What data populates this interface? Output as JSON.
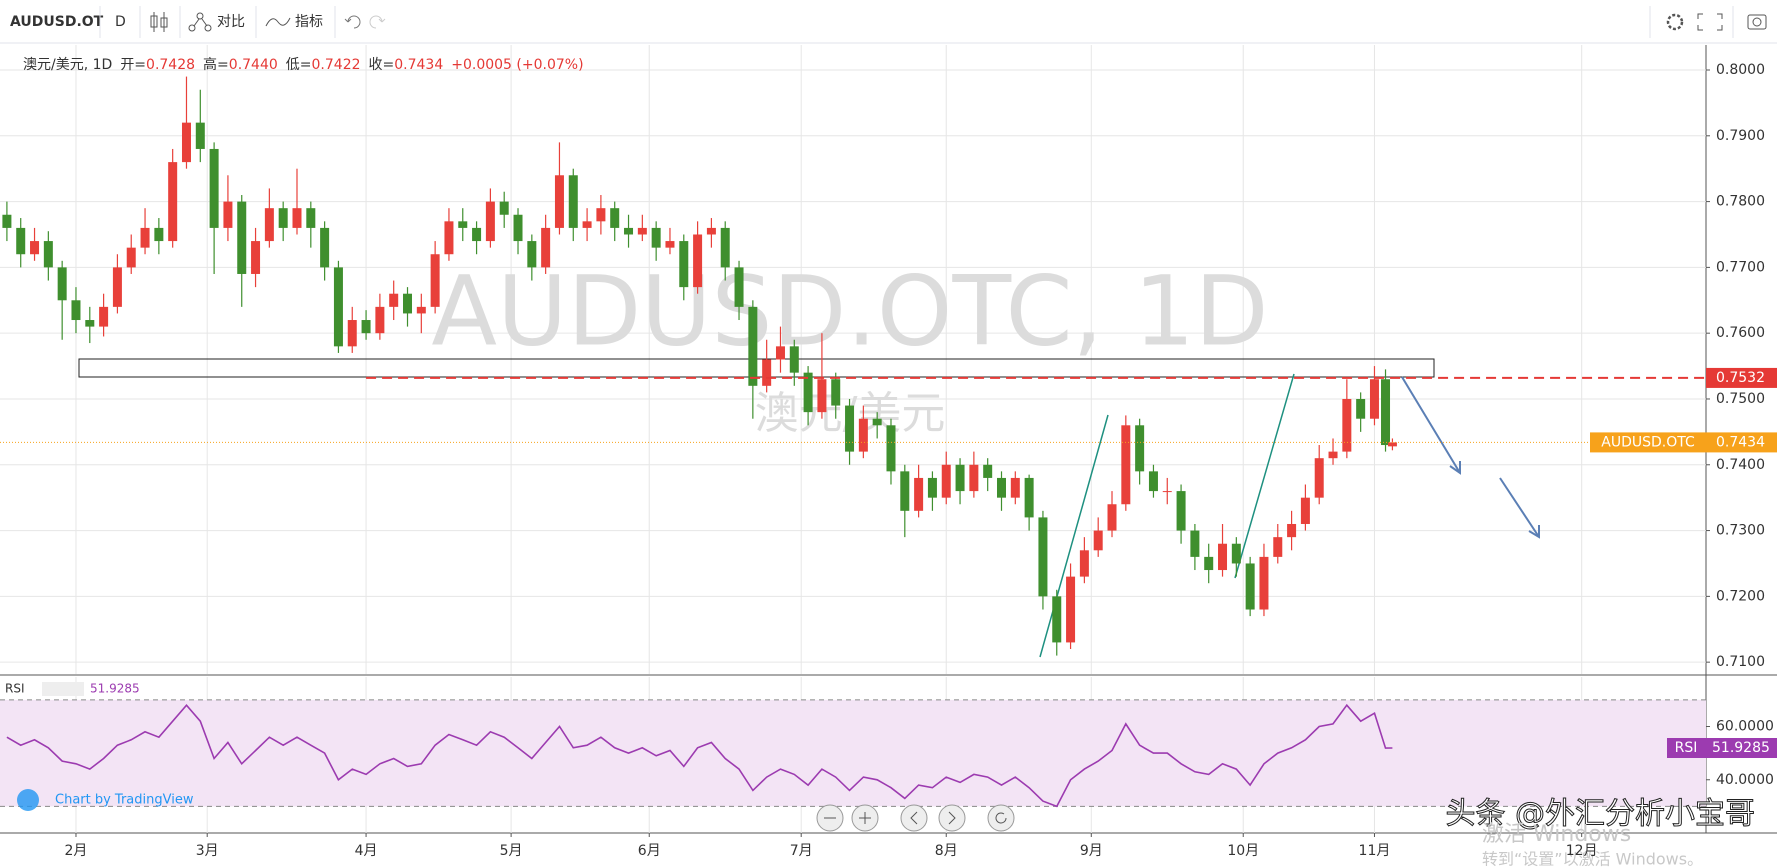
{
  "toolbar": {
    "symbol": "AUDUSD.OT",
    "interval": "D",
    "compare": "对比",
    "indicators": "指标"
  },
  "legend": {
    "name": "澳元/美元, 1D",
    "fields": [
      {
        "label": "开=",
        "value": "0.7428"
      },
      {
        "label": "高=",
        "value": "0.7440"
      },
      {
        "label": "低=",
        "value": "0.7422"
      },
      {
        "label": "收=",
        "value": "0.7434"
      }
    ],
    "change": "+0.0005 (+0.07%)"
  },
  "credit": "Chart by TradingView",
  "watermark": {
    "handle": "头条 @外汇分析小宝哥",
    "activate": "激活 Windows",
    "activate_hint": "转到“设置”以激活 Windows。"
  },
  "chart_data": [
    {
      "type": "candlestick",
      "title": "AUDUSD.OTC, 1D",
      "subtitle": "澳元/美元",
      "x": [
        1,
        3,
        5,
        7,
        9,
        11,
        13,
        15,
        17,
        19,
        21,
        23,
        25,
        27,
        29,
        31,
        33,
        35,
        37,
        39,
        41,
        43,
        45,
        47,
        49,
        51,
        53,
        55,
        57,
        59,
        61,
        63,
        65,
        67,
        69,
        71,
        73,
        75,
        77,
        79,
        81,
        83,
        85,
        87,
        89,
        91,
        93,
        95,
        97,
        99,
        101,
        103,
        105,
        107,
        109,
        111,
        113,
        115,
        117,
        119,
        121,
        123,
        125,
        127,
        129,
        131,
        133,
        135,
        137,
        139,
        141,
        143,
        145,
        147,
        149,
        151,
        153,
        155,
        157,
        159,
        161,
        163,
        165,
        167,
        169,
        171,
        173,
        175,
        177,
        179,
        181,
        183,
        185,
        187,
        189,
        191,
        193,
        195,
        197,
        199,
        200.6,
        201.6
      ],
      "series": [
        {
          "name": "澳元/美元, 1D",
          "up_color": "#e8403a",
          "down_color": "#3f8f2e",
          "ohlc": [
            [
              0.778,
              0.78,
              0.774,
              0.776
            ],
            [
              0.776,
              0.7775,
              0.77,
              0.772
            ],
            [
              0.772,
              0.776,
              0.771,
              0.774
            ],
            [
              0.774,
              0.7755,
              0.768,
              0.77
            ],
            [
              0.77,
              0.771,
              0.759,
              0.765
            ],
            [
              0.765,
              0.767,
              0.76,
              0.762
            ],
            [
              0.762,
              0.764,
              0.7585,
              0.761
            ],
            [
              0.761,
              0.766,
              0.7595,
              0.764
            ],
            [
              0.764,
              0.772,
              0.763,
              0.77
            ],
            [
              0.77,
              0.775,
              0.769,
              0.773
            ],
            [
              0.773,
              0.779,
              0.772,
              0.776
            ],
            [
              0.776,
              0.7775,
              0.772,
              0.774
            ],
            [
              0.774,
              0.788,
              0.773,
              0.786
            ],
            [
              0.786,
              0.799,
              0.785,
              0.792
            ],
            [
              0.792,
              0.797,
              0.786,
              0.788
            ],
            [
              0.788,
              0.789,
              0.769,
              0.776
            ],
            [
              0.776,
              0.784,
              0.774,
              0.78
            ],
            [
              0.78,
              0.781,
              0.764,
              0.769
            ],
            [
              0.769,
              0.776,
              0.767,
              0.774
            ],
            [
              0.774,
              0.782,
              0.773,
              0.779
            ],
            [
              0.779,
              0.78,
              0.774,
              0.776
            ],
            [
              0.776,
              0.785,
              0.775,
              0.779
            ],
            [
              0.779,
              0.78,
              0.773,
              0.776
            ],
            [
              0.776,
              0.777,
              0.768,
              0.77
            ],
            [
              0.77,
              0.771,
              0.757,
              0.758
            ],
            [
              0.758,
              0.764,
              0.757,
              0.762
            ],
            [
              0.762,
              0.7635,
              0.759,
              0.76
            ],
            [
              0.76,
              0.766,
              0.759,
              0.764
            ],
            [
              0.764,
              0.768,
              0.762,
              0.766
            ],
            [
              0.766,
              0.767,
              0.761,
              0.763
            ],
            [
              0.763,
              0.766,
              0.76,
              0.764
            ],
            [
              0.764,
              0.774,
              0.763,
              0.772
            ],
            [
              0.772,
              0.779,
              0.771,
              0.777
            ],
            [
              0.777,
              0.779,
              0.774,
              0.776
            ],
            [
              0.776,
              0.777,
              0.772,
              0.774
            ],
            [
              0.774,
              0.782,
              0.773,
              0.78
            ],
            [
              0.78,
              0.7815,
              0.776,
              0.778
            ],
            [
              0.778,
              0.779,
              0.772,
              0.774
            ],
            [
              0.774,
              0.775,
              0.768,
              0.77
            ],
            [
              0.77,
              0.778,
              0.769,
              0.776
            ],
            [
              0.776,
              0.789,
              0.775,
              0.784
            ],
            [
              0.784,
              0.785,
              0.774,
              0.776
            ],
            [
              0.776,
              0.779,
              0.774,
              0.777
            ],
            [
              0.777,
              0.781,
              0.775,
              0.779
            ],
            [
              0.779,
              0.78,
              0.774,
              0.776
            ],
            [
              0.776,
              0.778,
              0.773,
              0.775
            ],
            [
              0.775,
              0.778,
              0.774,
              0.776
            ],
            [
              0.776,
              0.777,
              0.771,
              0.773
            ],
            [
              0.773,
              0.776,
              0.772,
              0.774
            ],
            [
              0.774,
              0.775,
              0.765,
              0.767
            ],
            [
              0.767,
              0.777,
              0.766,
              0.775
            ],
            [
              0.775,
              0.7775,
              0.773,
              0.776
            ],
            [
              0.776,
              0.777,
              0.768,
              0.77
            ],
            [
              0.77,
              0.771,
              0.762,
              0.764
            ],
            [
              0.764,
              0.765,
              0.747,
              0.752
            ],
            [
              0.752,
              0.759,
              0.751,
              0.756
            ],
            [
              0.756,
              0.761,
              0.754,
              0.758
            ],
            [
              0.758,
              0.759,
              0.752,
              0.754
            ],
            [
              0.754,
              0.755,
              0.746,
              0.748
            ],
            [
              0.748,
              0.76,
              0.747,
              0.753
            ],
            [
              0.753,
              0.754,
              0.747,
              0.749
            ],
            [
              0.749,
              0.75,
              0.74,
              0.742
            ],
            [
              0.742,
              0.749,
              0.741,
              0.747
            ],
            [
              0.747,
              0.748,
              0.744,
              0.746
            ],
            [
              0.746,
              0.747,
              0.737,
              0.739
            ],
            [
              0.739,
              0.74,
              0.729,
              0.733
            ],
            [
              0.733,
              0.74,
              0.732,
              0.738
            ],
            [
              0.738,
              0.739,
              0.733,
              0.735
            ],
            [
              0.735,
              0.742,
              0.734,
              0.74
            ],
            [
              0.74,
              0.741,
              0.734,
              0.736
            ],
            [
              0.736,
              0.742,
              0.735,
              0.74
            ],
            [
              0.74,
              0.741,
              0.736,
              0.738
            ],
            [
              0.738,
              0.739,
              0.733,
              0.735
            ],
            [
              0.735,
              0.739,
              0.734,
              0.738
            ],
            [
              0.738,
              0.7385,
              0.73,
              0.732
            ],
            [
              0.732,
              0.733,
              0.718,
              0.72
            ],
            [
              0.72,
              0.721,
              0.711,
              0.713
            ],
            [
              0.713,
              0.725,
              0.712,
              0.723
            ],
            [
              0.723,
              0.729,
              0.722,
              0.727
            ],
            [
              0.727,
              0.732,
              0.726,
              0.73
            ],
            [
              0.73,
              0.736,
              0.729,
              0.734
            ],
            [
              0.734,
              0.7475,
              0.733,
              0.746
            ],
            [
              0.746,
              0.747,
              0.737,
              0.739
            ],
            [
              0.739,
              0.74,
              0.735,
              0.736
            ],
            [
              0.736,
              0.738,
              0.734,
              0.736
            ],
            [
              0.736,
              0.737,
              0.728,
              0.73
            ],
            [
              0.73,
              0.731,
              0.724,
              0.726
            ],
            [
              0.726,
              0.728,
              0.722,
              0.724
            ],
            [
              0.724,
              0.731,
              0.723,
              0.728
            ],
            [
              0.728,
              0.729,
              0.723,
              0.725
            ],
            [
              0.725,
              0.726,
              0.717,
              0.718
            ],
            [
              0.718,
              0.728,
              0.717,
              0.726
            ],
            [
              0.726,
              0.731,
              0.725,
              0.729
            ],
            [
              0.729,
              0.733,
              0.727,
              0.731
            ],
            [
              0.731,
              0.737,
              0.73,
              0.735
            ],
            [
              0.735,
              0.743,
              0.734,
              0.741
            ],
            [
              0.741,
              0.744,
              0.74,
              0.742
            ],
            [
              0.742,
              0.753,
              0.741,
              0.75
            ],
            [
              0.75,
              0.751,
              0.745,
              0.747
            ],
            [
              0.747,
              0.755,
              0.746,
              0.753
            ],
            [
              0.753,
              0.7545,
              0.742,
              0.743
            ],
            [
              0.7428,
              0.744,
              0.7422,
              0.7434
            ]
          ]
        }
      ],
      "xlim": [
        0,
        247
      ],
      "xticks": [
        {
          "value": 11,
          "label": "2月"
        },
        {
          "value": 30,
          "label": "3月"
        },
        {
          "value": 53,
          "label": "4月"
        },
        {
          "value": 74,
          "label": "5月"
        },
        {
          "value": 94,
          "label": "6月"
        },
        {
          "value": 116,
          "label": "7月"
        },
        {
          "value": 137,
          "label": "8月"
        },
        {
          "value": 158,
          "label": "9月"
        },
        {
          "value": 180,
          "label": "10月"
        },
        {
          "value": 199,
          "label": "11月"
        },
        {
          "value": 229,
          "label": "12月"
        }
      ],
      "ylim": [
        0.7082,
        0.8038
      ],
      "yticks": [
        {
          "value": 0.71,
          "label": "0.7100"
        },
        {
          "value": 0.72,
          "label": "0.7200"
        },
        {
          "value": 0.73,
          "label": "0.7300"
        },
        {
          "value": 0.74,
          "label": "0.7400"
        },
        {
          "value": 0.75,
          "label": "0.7500"
        },
        {
          "value": 0.76,
          "label": "0.7600"
        },
        {
          "value": 0.77,
          "label": "0.7700"
        },
        {
          "value": 0.78,
          "label": "0.7800"
        },
        {
          "value": 0.79,
          "label": "0.7900"
        },
        {
          "value": 0.8,
          "label": "0.8000"
        }
      ],
      "grid": true,
      "level": {
        "value": 0.7532,
        "color": "#e53935"
      },
      "last_price": {
        "name": "AUDUSD.OTC",
        "value": 0.7434,
        "color": "#f7a21b"
      }
    },
    {
      "type": "line",
      "title": "RSI",
      "series": [
        {
          "name": "RSI",
          "color": "#9c3bb0",
          "values": [
            56,
            53,
            55,
            52,
            47,
            46,
            44,
            48,
            53,
            55,
            58,
            56,
            62,
            68,
            62,
            48,
            54,
            46,
            51,
            56,
            53,
            56,
            53,
            50,
            40,
            44,
            42,
            46,
            48,
            45,
            46,
            53,
            57,
            55,
            53,
            58,
            56,
            52,
            48,
            54,
            60,
            52,
            53,
            56,
            52,
            50,
            52,
            49,
            51,
            45,
            52,
            54,
            48,
            44,
            36,
            41,
            44,
            42,
            38,
            44,
            41,
            36,
            41,
            40,
            37,
            33,
            38,
            37,
            41,
            39,
            42,
            41,
            38,
            41,
            37,
            32,
            30,
            40,
            44,
            47,
            51,
            61,
            53,
            50,
            50,
            46,
            43,
            42,
            46,
            44,
            38,
            46,
            50,
            52,
            55,
            60,
            61,
            68,
            62,
            65,
            51.9,
            51.9285
          ]
        }
      ],
      "ylim": [
        20,
        78.6
      ],
      "yticks": [
        {
          "value": 40,
          "label": "40.0000"
        },
        {
          "value": 60,
          "label": "60.0000"
        }
      ],
      "band": [
        30,
        70
      ]
    }
  ]
}
